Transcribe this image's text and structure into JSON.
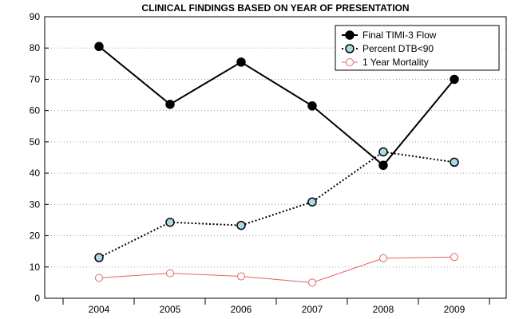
{
  "chart_data": {
    "type": "line",
    "title": "CLINICAL FINDINGS BASED ON YEAR OF PRESENTATION",
    "xlabel": "",
    "ylabel": "",
    "categories": [
      "2004",
      "2005",
      "2006",
      "2007",
      "2008",
      "2009"
    ],
    "ylim": [
      0,
      90
    ],
    "yticks": [
      0,
      10,
      20,
      30,
      40,
      50,
      60,
      70,
      80,
      90
    ],
    "grid": "horizontal dotted",
    "legend": "top-right",
    "series": [
      {
        "name": "Final TIMI-3 Flow",
        "values": [
          80.5,
          62,
          75.5,
          61.5,
          42.5,
          70
        ],
        "line_color": "#000000",
        "marker_fill": "#000000",
        "line_style": "solid"
      },
      {
        "name": "Percent DTB<90",
        "values": [
          13,
          24.3,
          23.3,
          30.8,
          46.8,
          43.5
        ],
        "line_color": "#000000",
        "marker_fill": "#add8e6",
        "line_style": "dotted"
      },
      {
        "name": "1 Year Mortality",
        "values": [
          6.5,
          8,
          7,
          5,
          12.8,
          13.2
        ],
        "line_color": "#e06464",
        "marker_fill": "#ffffff",
        "line_style": "solid"
      }
    ]
  }
}
